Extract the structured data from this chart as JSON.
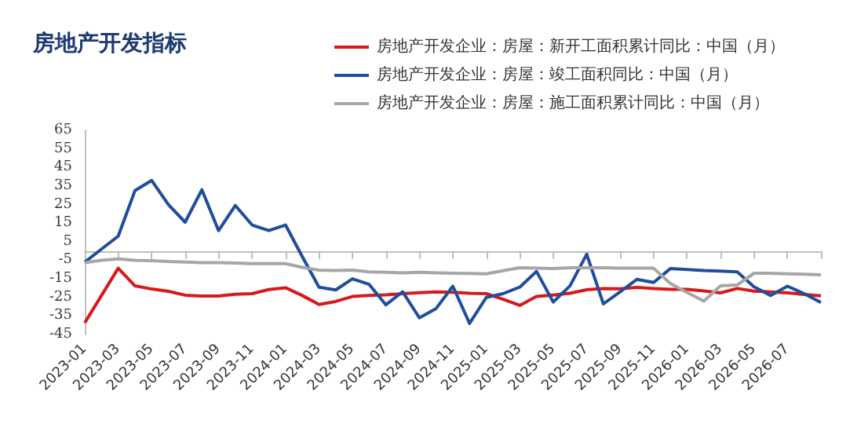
{
  "chart_data": {
    "type": "line",
    "title": "房地产开发指标",
    "categories": [
      "2023-01",
      null,
      "2023-03",
      null,
      "2023-05",
      null,
      "2023-07",
      null,
      "2023-09",
      null,
      "2023-11",
      null,
      "2024-01",
      null,
      "2024-03",
      null,
      "2024-05",
      null,
      "2024-07",
      null,
      "2024-09",
      null,
      "2024-11",
      null,
      "2025-01",
      null,
      "2025-03",
      null,
      "2025-05",
      null,
      "2025-07",
      null,
      "2025-09",
      null,
      "2025-11",
      null,
      "2026-01",
      null,
      "2026-03",
      null,
      "2026-05",
      null,
      "2026-07",
      null,
      null
    ],
    "series": [
      {
        "name": "房地产开发企业：房屋：新开工面积累计同比：中国（月）",
        "color": "#d7191c",
        "values": [
          -38.7,
          -24,
          -9.3,
          -18.8,
          -20.5,
          -21.7,
          -23.8,
          -24.3,
          -24.3,
          -23.3,
          -23,
          -20.8,
          -19.8,
          -24,
          -28.8,
          -27.2,
          -24.5,
          -24,
          -23.6,
          -23,
          -22.5,
          -22,
          -22.3,
          -22.8,
          -23,
          -26,
          -29.3,
          -24.5,
          -23.7,
          -22.8,
          -20.9,
          -20.2,
          -20.4,
          -19.6,
          -20.2,
          -20.7,
          -20.7,
          -21.5,
          -22.6,
          -20.2,
          -21.6,
          -22,
          -22.6,
          -23.4,
          -24.2
        ]
      },
      {
        "name": "房地产开发企业：房屋：竣工面积同比：中国（月）",
        "color": "#1f4e9c",
        "values": [
          -6,
          1,
          8,
          32.5,
          38,
          25,
          15.5,
          33,
          11,
          24.5,
          14,
          11,
          14,
          -3,
          -19.5,
          -21,
          -15,
          -18,
          -29,
          -22,
          -36,
          -31,
          -19,
          -39,
          -25,
          -23,
          -19.5,
          -11,
          -27.5,
          -18.8,
          -1.8,
          -28.5,
          -22,
          -15.3,
          -17,
          -9.5,
          -10,
          -10.5,
          -10.8,
          -11.3,
          -19.3,
          -24,
          -19,
          -23,
          -27.8
        ]
      },
      {
        "name": "房地产开发企业：房屋：施工面积累计同比：中国（月）",
        "color": "#a6a6a6",
        "values": [
          -6.3,
          -5,
          -4.3,
          -5,
          -5.2,
          -5.7,
          -6,
          -6.3,
          -6.3,
          -6.5,
          -6.8,
          -6.8,
          -6.8,
          -8.8,
          -10.3,
          -10.5,
          -10.3,
          -11.3,
          -11.5,
          -11.8,
          -11.5,
          -11.8,
          -12,
          -12.1,
          -12.3,
          -10.6,
          -9,
          -9.2,
          -9.5,
          -9,
          -9,
          -9,
          -9.2,
          -9.2,
          -9.3,
          -17.5,
          -22.4,
          -27,
          -18.8,
          -18.3,
          -12,
          -12,
          -12.3,
          -12.5,
          -12.8
        ]
      }
    ],
    "ylim": [
      -45,
      65
    ],
    "yticks": [
      -45,
      -35,
      -25,
      -15,
      -5,
      5,
      15,
      25,
      35,
      45,
      55,
      65
    ],
    "legend": "top",
    "grid": false,
    "marker": "none"
  }
}
